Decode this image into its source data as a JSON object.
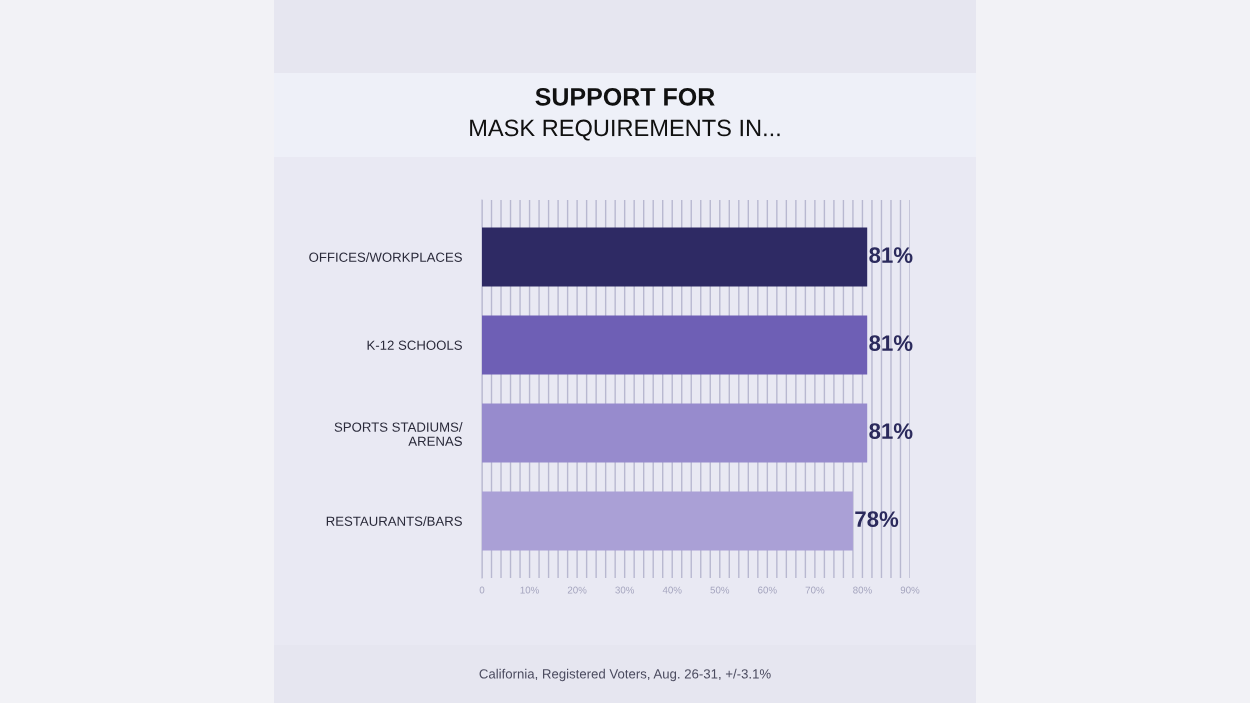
{
  "chart_data": {
    "type": "bar",
    "orientation": "horizontal",
    "title": "SUPPORT FOR",
    "subtitle": "MASK REQUIREMENTS IN...",
    "categories": [
      "OFFICES/WORKPLACES",
      "K-12 SCHOOLS",
      "SPORTS STADIUMS/\nARENAS",
      "RESTAURANTS/BARS"
    ],
    "values": [
      81,
      81,
      81,
      78
    ],
    "value_labels": [
      "81%",
      "81%",
      "81%",
      "78%"
    ],
    "colors": [
      "#2e2a64",
      "#6e5fb5",
      "#978bcd",
      "#aaa0d6"
    ],
    "xlim": [
      0,
      90
    ],
    "xticks": [
      0,
      {
        "value": 2,
        "label": null
      },
      {
        "value": 4,
        "label": null
      },
      {
        "value": 6,
        "label": null
      },
      {
        "value": 8,
        "label": null
      },
      {
        "value": 10,
        "label": "10%"
      },
      {
        "value": 12,
        "label": null
      },
      {
        "value": 14,
        "label": null
      },
      {
        "value": 16,
        "label": null
      },
      {
        "value": 18,
        "label": null
      },
      {
        "value": 20,
        "label": "20%"
      },
      {
        "value": 22,
        "label": null
      },
      {
        "value": 24,
        "label": null
      },
      {
        "value": 26,
        "label": null
      },
      {
        "value": 28,
        "label": null
      },
      {
        "value": 30,
        "label": "30%"
      },
      {
        "value": 32,
        "label": null
      },
      {
        "value": 34,
        "label": null
      },
      {
        "value": 36,
        "label": null
      },
      {
        "value": 38,
        "label": null
      },
      {
        "value": 40,
        "label": "40%"
      },
      {
        "value": 42,
        "label": null
      },
      {
        "value": 44,
        "label": null
      },
      {
        "value": 46,
        "label": null
      },
      {
        "value": 48,
        "label": null
      },
      {
        "value": 50,
        "label": "50%"
      },
      {
        "value": 52,
        "label": null
      },
      {
        "value": 54,
        "label": null
      },
      {
        "value": 56,
        "label": null
      },
      {
        "value": 58,
        "label": null
      },
      {
        "value": 60,
        "label": "60%"
      },
      {
        "value": 62,
        "label": null
      },
      {
        "value": 64,
        "label": null
      },
      {
        "value": 66,
        "label": null
      },
      {
        "value": 68,
        "label": null
      },
      {
        "value": 70,
        "label": "70%"
      },
      {
        "value": 72,
        "label": null
      },
      {
        "value": 74,
        "label": null
      },
      {
        "value": 76,
        "label": null
      },
      {
        "value": 78,
        "label": null
      },
      {
        "value": 80,
        "label": "80%"
      },
      {
        "value": 82,
        "label": null
      },
      {
        "value": 84,
        "label": null
      },
      {
        "value": 86,
        "label": null
      },
      {
        "value": 88,
        "label": null
      },
      {
        "value": 90,
        "label": "90%"
      }
    ],
    "grid": "x",
    "annotations": [
      "California, Registered Voters, Aug. 26-31, +/-3.1%"
    ]
  }
}
